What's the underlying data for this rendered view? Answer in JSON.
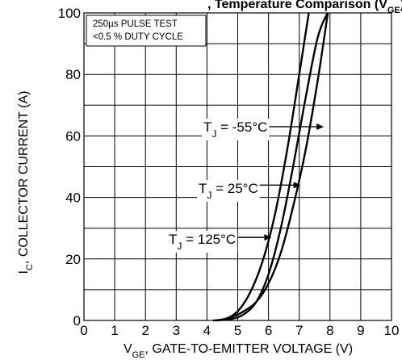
{
  "chart_data": {
    "type": "line",
    "title": "",
    "top_caption": ", Temperature Comparison (V_GE)",
    "xlabel": "V_GE, GATE-TO-EMITTER VOLTAGE (V)",
    "ylabel": "I_C, COLLECTOR CURRENT (A)",
    "xlim": [
      0,
      10
    ],
    "ylim": [
      0,
      100
    ],
    "x_ticks": [
      "0",
      "1",
      "2",
      "3",
      "4",
      "5",
      "6",
      "7",
      "8",
      "9",
      "10"
    ],
    "y_ticks": [
      "0",
      "20",
      "40",
      "60",
      "80",
      "100"
    ],
    "grid": true,
    "notes": [
      "250µs PULSE TEST",
      "<0.5 % DUTY CYCLE"
    ],
    "series": [
      {
        "name": "T_J = -55°C",
        "x": [
          4.3,
          4.6,
          4.9,
          5.2,
          5.6,
          6.0,
          6.4,
          6.8,
          7.2,
          7.6,
          7.93
        ],
        "y": [
          0,
          0.5,
          1.5,
          3,
          6,
          12,
          22,
          37,
          55,
          78,
          100
        ]
      },
      {
        "name": "T_J = 25°C",
        "x": [
          4.3,
          4.8,
          5.2,
          5.6,
          6.0,
          6.4,
          6.8,
          7.2,
          7.6,
          7.92
        ],
        "y": [
          0,
          0.5,
          2,
          6,
          15,
          30,
          50,
          72,
          92,
          100
        ]
      },
      {
        "name": "T_J = 125°C",
        "x": [
          4.2,
          4.6,
          5.0,
          5.4,
          5.8,
          6.2,
          6.6,
          7.0,
          7.31
        ],
        "y": [
          0,
          0.5,
          3,
          9,
          19,
          34,
          55,
          80,
          100
        ]
      }
    ],
    "annotations": [
      {
        "prefix": "T",
        "sub": "J",
        "text": " = -55°C",
        "arrow_to": [
          7.8,
          63
        ]
      },
      {
        "prefix": "T",
        "sub": "J",
        "text": " = 25°C",
        "arrow_to": [
          7.05,
          44
        ]
      },
      {
        "prefix": "T",
        "sub": "J",
        "text": " = 125°C",
        "arrow_to": [
          6.1,
          27
        ]
      }
    ]
  }
}
